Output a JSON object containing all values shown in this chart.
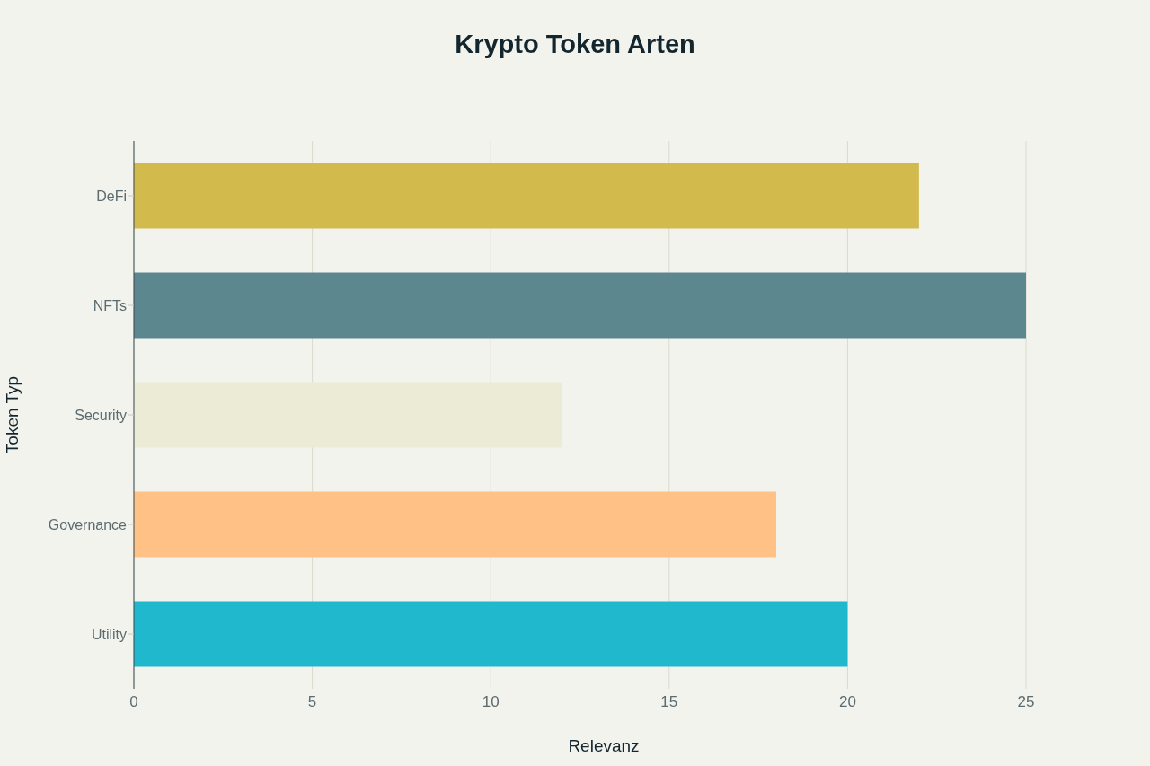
{
  "chart_data": {
    "type": "bar",
    "orientation": "horizontal",
    "title": "Krypto Token Arten",
    "xlabel": "Relevanz",
    "ylabel": "Token Typ",
    "categories": [
      "DeFi",
      "NFTs",
      "Security",
      "Governance",
      "Utility"
    ],
    "values": [
      22,
      25,
      12,
      18,
      20
    ],
    "colors": [
      "#d2ba4c",
      "#5d878f",
      "#ecebd5",
      "#ffc185",
      "#1fb8cd"
    ],
    "xlim": [
      0,
      25
    ],
    "xticks": [
      0,
      5,
      10,
      15,
      20,
      25
    ],
    "grid": "x"
  }
}
